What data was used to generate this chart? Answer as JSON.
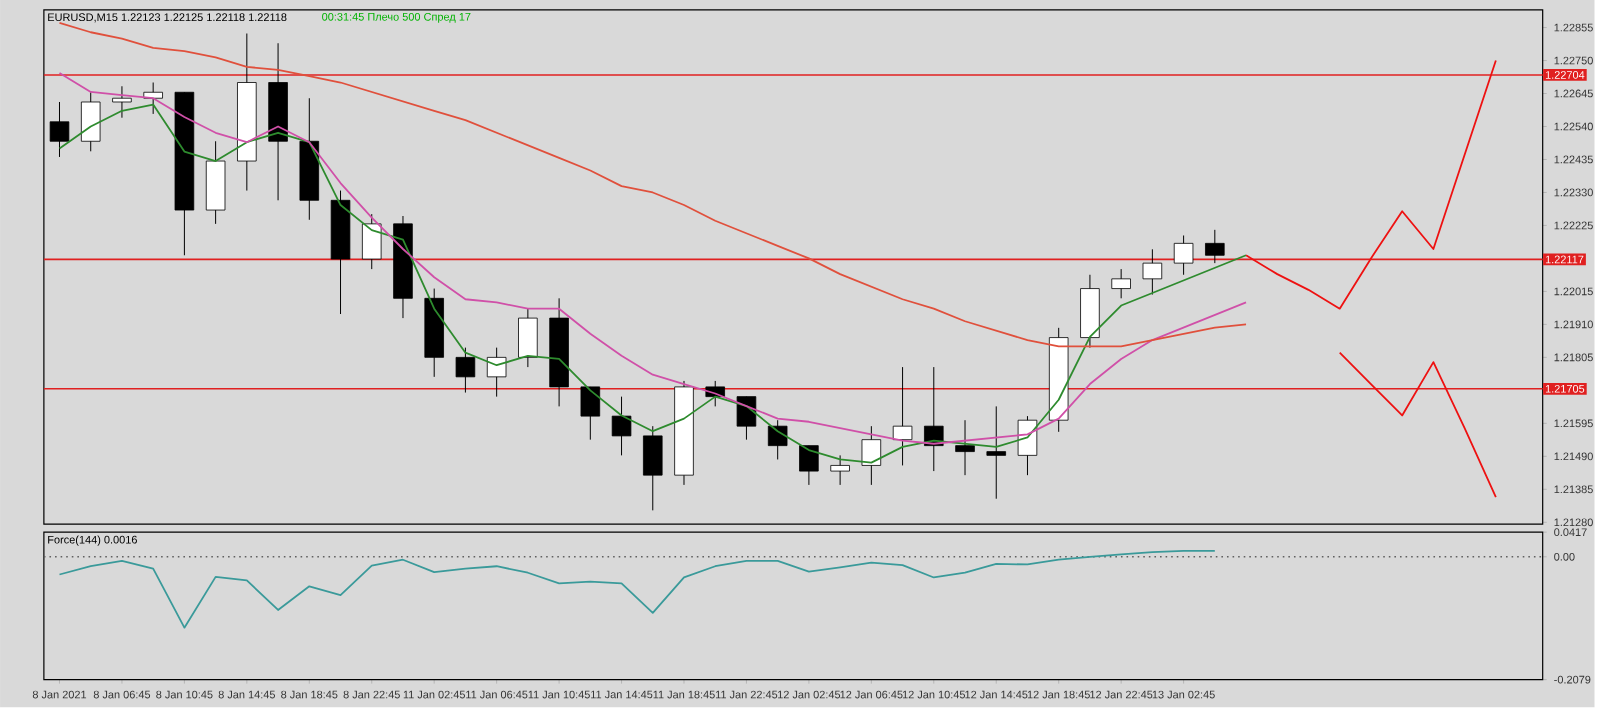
{
  "chart_data": [
    {
      "type": "candlestick",
      "title": "EURUSD,M15 1.22123 1.22125 1.22118 1.22118",
      "subtitle": "00:31:45 Плечо 500 Спред 17",
      "categories": [
        null,
        null,
        null,
        null,
        null,
        null,
        null,
        null,
        null,
        null,
        null,
        null,
        null,
        null,
        null,
        null,
        null,
        null,
        null,
        null,
        null,
        null,
        null,
        null,
        null,
        null,
        null,
        null,
        null,
        null,
        null,
        null,
        null,
        null,
        null,
        null,
        null,
        null,
        null,
        null,
        null,
        null,
        null,
        null,
        null,
        null,
        null,
        null
      ],
      "ohlc": [
        [
          1.22555,
          1.22618,
          1.22443,
          1.22493
        ],
        [
          1.22493,
          1.22649,
          1.22461,
          1.22618
        ],
        [
          1.22618,
          1.22668,
          1.22568,
          1.2263
        ],
        [
          1.2263,
          1.2268,
          1.2258,
          1.22649
        ],
        [
          1.22649,
          1.22649,
          1.2213,
          1.22274
        ],
        [
          1.22274,
          1.22493,
          1.2223,
          1.2243
        ],
        [
          1.2243,
          1.22836,
          1.22336,
          1.2268
        ],
        [
          1.2268,
          1.22805,
          1.22305,
          1.22493
        ],
        [
          1.22493,
          1.2263,
          1.22243,
          1.22305
        ],
        [
          1.22305,
          1.22336,
          1.21943,
          1.22118
        ],
        [
          1.22118,
          1.22261,
          1.22086,
          1.2223
        ],
        [
          1.2223,
          1.22255,
          1.2193,
          1.21993
        ],
        [
          1.21993,
          1.22024,
          1.21743,
          1.21805
        ],
        [
          1.21805,
          1.21836,
          1.21693,
          1.21743
        ],
        [
          1.21743,
          1.21836,
          1.2168,
          1.21805
        ],
        [
          1.21805,
          1.21961,
          1.21774,
          1.2193
        ],
        [
          1.2193,
          1.21993,
          1.21649,
          1.21711
        ],
        [
          1.21711,
          1.21711,
          1.21543,
          1.21618
        ],
        [
          1.21618,
          1.2168,
          1.21493,
          1.21555
        ],
        [
          1.21555,
          1.21586,
          1.21318,
          1.2143
        ],
        [
          1.2143,
          1.2173,
          1.21399,
          1.21711
        ],
        [
          1.21711,
          1.2173,
          1.21649,
          1.2168
        ],
        [
          1.2168,
          1.2168,
          1.21543,
          1.21586
        ],
        [
          1.21586,
          1.21605,
          1.2148,
          1.21524
        ],
        [
          1.21524,
          1.21524,
          1.21399,
          1.21443
        ],
        [
          1.21443,
          1.21493,
          1.21399,
          1.21461
        ],
        [
          1.21461,
          1.21586,
          1.21399,
          1.21543
        ],
        [
          1.21543,
          1.21774,
          1.21461,
          1.21586
        ],
        [
          1.21586,
          1.21774,
          1.21443,
          1.21524
        ],
        [
          1.21524,
          1.21605,
          1.2143,
          1.21505
        ],
        [
          1.21505,
          1.21649,
          1.21355,
          1.21493
        ],
        [
          1.21493,
          1.21618,
          1.2143,
          1.21605
        ],
        [
          1.21605,
          1.21899,
          1.21568,
          1.21868
        ],
        [
          1.21868,
          1.22068,
          1.21836,
          1.22024
        ],
        [
          1.22024,
          1.22086,
          1.21993,
          1.22055
        ],
        [
          1.22055,
          1.22149,
          1.22005,
          1.22105
        ],
        [
          1.22105,
          1.22193,
          1.22068,
          1.22168
        ],
        [
          1.22168,
          1.22211,
          1.22105,
          1.2213
        ],
        null,
        null,
        null,
        null,
        null,
        null,
        null,
        null,
        null,
        null
      ],
      "series": [
        {
          "type": "line",
          "color": "#2e8b2e",
          "values": [
            1.2247,
            1.2254,
            1.2259,
            1.2261,
            1.2246,
            1.2243,
            1.2249,
            1.2252,
            1.2249,
            1.2229,
            1.2221,
            1.2218,
            1.2196,
            1.2182,
            1.2178,
            1.2181,
            1.218,
            1.217,
            1.2162,
            1.2157,
            1.2161,
            1.2168,
            1.2165,
            1.2157,
            1.2151,
            1.2148,
            1.2147,
            1.2152,
            1.2154,
            1.2153,
            1.2152,
            1.2155,
            1.2167,
            1.2187,
            1.2197,
            1.2201,
            1.2205,
            1.2209,
            1.2213,
            null,
            null,
            null,
            null,
            null,
            null,
            null,
            null,
            null
          ]
        },
        {
          "type": "line",
          "color": "#d050a8",
          "values": [
            1.2271,
            1.2265,
            1.2264,
            1.2263,
            1.2257,
            1.2252,
            1.2249,
            1.2254,
            1.2249,
            1.2236,
            1.2225,
            1.2215,
            1.2206,
            1.2199,
            1.2198,
            1.2196,
            1.2196,
            1.2188,
            1.2181,
            1.2175,
            1.2172,
            1.2169,
            1.2165,
            1.2161,
            1.216,
            1.2158,
            1.2156,
            1.2154,
            1.2153,
            1.2154,
            1.2155,
            1.2156,
            1.2161,
            1.2172,
            1.218,
            1.2186,
            1.219,
            1.2194,
            1.2198,
            null,
            null,
            null,
            null,
            null,
            null,
            null,
            null,
            null
          ]
        },
        {
          "type": "line",
          "color": "#e0503c",
          "values": [
            1.2287,
            1.2284,
            1.2282,
            1.2279,
            1.2278,
            1.2276,
            1.2273,
            1.2272,
            1.227,
            1.2268,
            1.2265,
            1.2262,
            1.2259,
            1.2256,
            1.2252,
            1.2248,
            1.2244,
            1.224,
            1.2235,
            1.2233,
            1.2229,
            1.2224,
            1.222,
            1.2216,
            1.2212,
            1.2207,
            1.2203,
            1.2199,
            1.2196,
            1.2192,
            1.2189,
            1.2186,
            1.2184,
            1.2184,
            1.2184,
            1.2186,
            1.2188,
            1.219,
            1.2191,
            null,
            null,
            null,
            null,
            null,
            null,
            null,
            null,
            null
          ]
        },
        {
          "type": "line",
          "color": "#ee1111",
          "values": [
            null,
            null,
            null,
            null,
            null,
            null,
            null,
            null,
            null,
            null,
            null,
            null,
            null,
            null,
            null,
            null,
            null,
            null,
            null,
            null,
            null,
            null,
            null,
            null,
            null,
            null,
            null,
            null,
            null,
            null,
            null,
            null,
            null,
            null,
            null,
            null,
            null,
            null,
            1.2213,
            1.2207,
            1.2202,
            1.2196,
            1.2212,
            1.2227,
            1.2215,
            1.2245,
            1.2275,
            null
          ]
        },
        {
          "type": "line",
          "color": "#ee1111",
          "values": [
            null,
            null,
            null,
            null,
            null,
            null,
            null,
            null,
            null,
            null,
            null,
            null,
            null,
            null,
            null,
            null,
            null,
            null,
            null,
            null,
            null,
            null,
            null,
            null,
            null,
            null,
            null,
            null,
            null,
            null,
            null,
            null,
            null,
            null,
            null,
            null,
            null,
            null,
            null,
            null,
            null,
            1.2182,
            1.2172,
            1.2162,
            1.2179,
            1.2158,
            1.2136,
            null
          ]
        }
      ],
      "ylim": [
        1.21274,
        1.22911
      ],
      "yticks": [
        1.22855,
        {
          "value": 1.2275,
          "label": "1.22750"
        },
        1.22645,
        {
          "value": 1.2254,
          "label": "1.22540"
        },
        1.22435,
        {
          "value": 1.2233,
          "label": "1.22330"
        },
        1.22225,
        1.22015,
        {
          "value": 1.2191,
          "label": "1.21910"
        },
        1.21805,
        1.21595,
        {
          "value": 1.2149,
          "label": "1.21490"
        },
        1.21385,
        {
          "value": 1.2128,
          "label": "1.21280"
        }
      ],
      "tick_labels": "y",
      "ref_lines": [
        {
          "axis": "y",
          "value": 1.22704,
          "label": "1.22704",
          "color": "#e02020"
        },
        {
          "axis": "y",
          "value": 1.22117,
          "label": "1.22117",
          "color": "#e02020"
        },
        {
          "axis": "y",
          "value": 1.21705,
          "label": "1.21705",
          "color": "#e02020"
        }
      ]
    },
    {
      "type": "line",
      "title": "Force(144) 0.0016",
      "color": "#3a9a9a",
      "categories": [
        "8 Jan 2021",
        null,
        "8 Jan 06:45",
        null,
        "8 Jan 10:45",
        null,
        "8 Jan 14:45",
        null,
        "8 Jan 18:45",
        null,
        "8 Jan 22:45",
        null,
        "11 Jan 02:45",
        null,
        "11 Jan 06:45",
        null,
        "11 Jan 10:45",
        null,
        "11 Jan 14:45",
        null,
        "11 Jan 18:45",
        null,
        "11 Jan 22:45",
        null,
        "12 Jan 02:45",
        null,
        "12 Jan 06:45",
        null,
        "12 Jan 10:45",
        null,
        "12 Jan 14:45",
        null,
        "12 Jan 18:45",
        null,
        "12 Jan 22:45",
        null,
        "13 Jan 02:45",
        null,
        null,
        null,
        null,
        null,
        null,
        null,
        null,
        null,
        null,
        null
      ],
      "values": [
        -0.03,
        -0.016,
        -0.007,
        -0.02,
        -0.12,
        -0.034,
        -0.04,
        -0.09,
        -0.05,
        -0.065,
        -0.015,
        -0.005,
        -0.026,
        -0.02,
        -0.016,
        -0.027,
        -0.045,
        -0.042,
        -0.045,
        -0.095,
        -0.035,
        -0.016,
        -0.007,
        -0.007,
        -0.025,
        -0.018,
        -0.01,
        -0.014,
        -0.035,
        -0.027,
        -0.012,
        -0.013,
        -0.005,
        0,
        0.004,
        0.008,
        0.01,
        0.01,
        null,
        null,
        null,
        null,
        null,
        null,
        null,
        null,
        null,
        null
      ],
      "ylim": [
        -0.2079,
        0.0417
      ],
      "yticks": [
        0.0417,
        {
          "value": 0,
          "label": "0.00"
        },
        -0.2079
      ],
      "ref_lines": [
        {
          "axis": "y",
          "value": 0,
          "color": "#606060",
          "line_style": "dotted"
        }
      ]
    }
  ]
}
